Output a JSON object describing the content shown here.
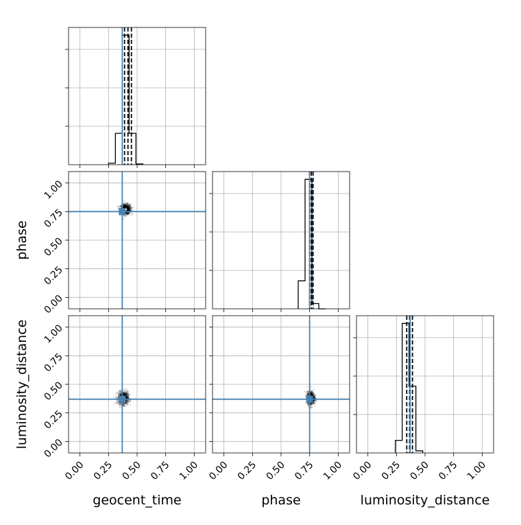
{
  "chart_data": {
    "type": "corner",
    "parameters": [
      "geocent_time",
      "phase",
      "luminosity_distance"
    ],
    "axis_range": [
      -0.1,
      1.1
    ],
    "ticks": [
      0.0,
      0.25,
      0.5,
      0.75,
      1.0
    ],
    "tick_labels": [
      "0.00",
      "0.25",
      "0.50",
      "0.75",
      "1.00"
    ],
    "grid": true,
    "truths": {
      "geocent_time": 0.37,
      "phase": 0.75,
      "luminosity_distance": 0.37
    },
    "truth_color": "#4682b4",
    "histograms": {
      "geocent_time": {
        "bin_edges": [
          0.25,
          0.31,
          0.37,
          0.43,
          0.49,
          0.55
        ],
        "counts": [
          0.04,
          0.8,
          3.3,
          0.8,
          0.02
        ],
        "quantiles": [
          0.39,
          0.42,
          0.45
        ]
      },
      "phase": {
        "bin_edges": [
          0.65,
          0.71,
          0.77,
          0.83,
          0.89
        ],
        "counts": [
          0.8,
          3.7,
          0.15,
          0.0
        ],
        "quantiles": [
          0.75,
          0.765,
          0.78
        ]
      },
      "luminosity_distance": {
        "bin_edges": [
          0.24,
          0.3,
          0.36,
          0.42,
          0.48
        ],
        "counts": [
          0.3,
          3.1,
          1.6,
          0.05
        ],
        "quantiles": [
          0.34,
          0.365,
          0.39
        ]
      }
    },
    "scatter_2d": [
      {
        "x": "geocent_time",
        "y": "phase",
        "center": [
          0.4,
          0.77
        ],
        "spread": [
          0.04,
          0.04
        ]
      },
      {
        "x": "geocent_time",
        "y": "luminosity_distance",
        "center": [
          0.38,
          0.38
        ],
        "spread": [
          0.04,
          0.05
        ]
      },
      {
        "x": "phase",
        "y": "luminosity_distance",
        "center": [
          0.76,
          0.38
        ],
        "spread": [
          0.03,
          0.05
        ]
      }
    ]
  }
}
